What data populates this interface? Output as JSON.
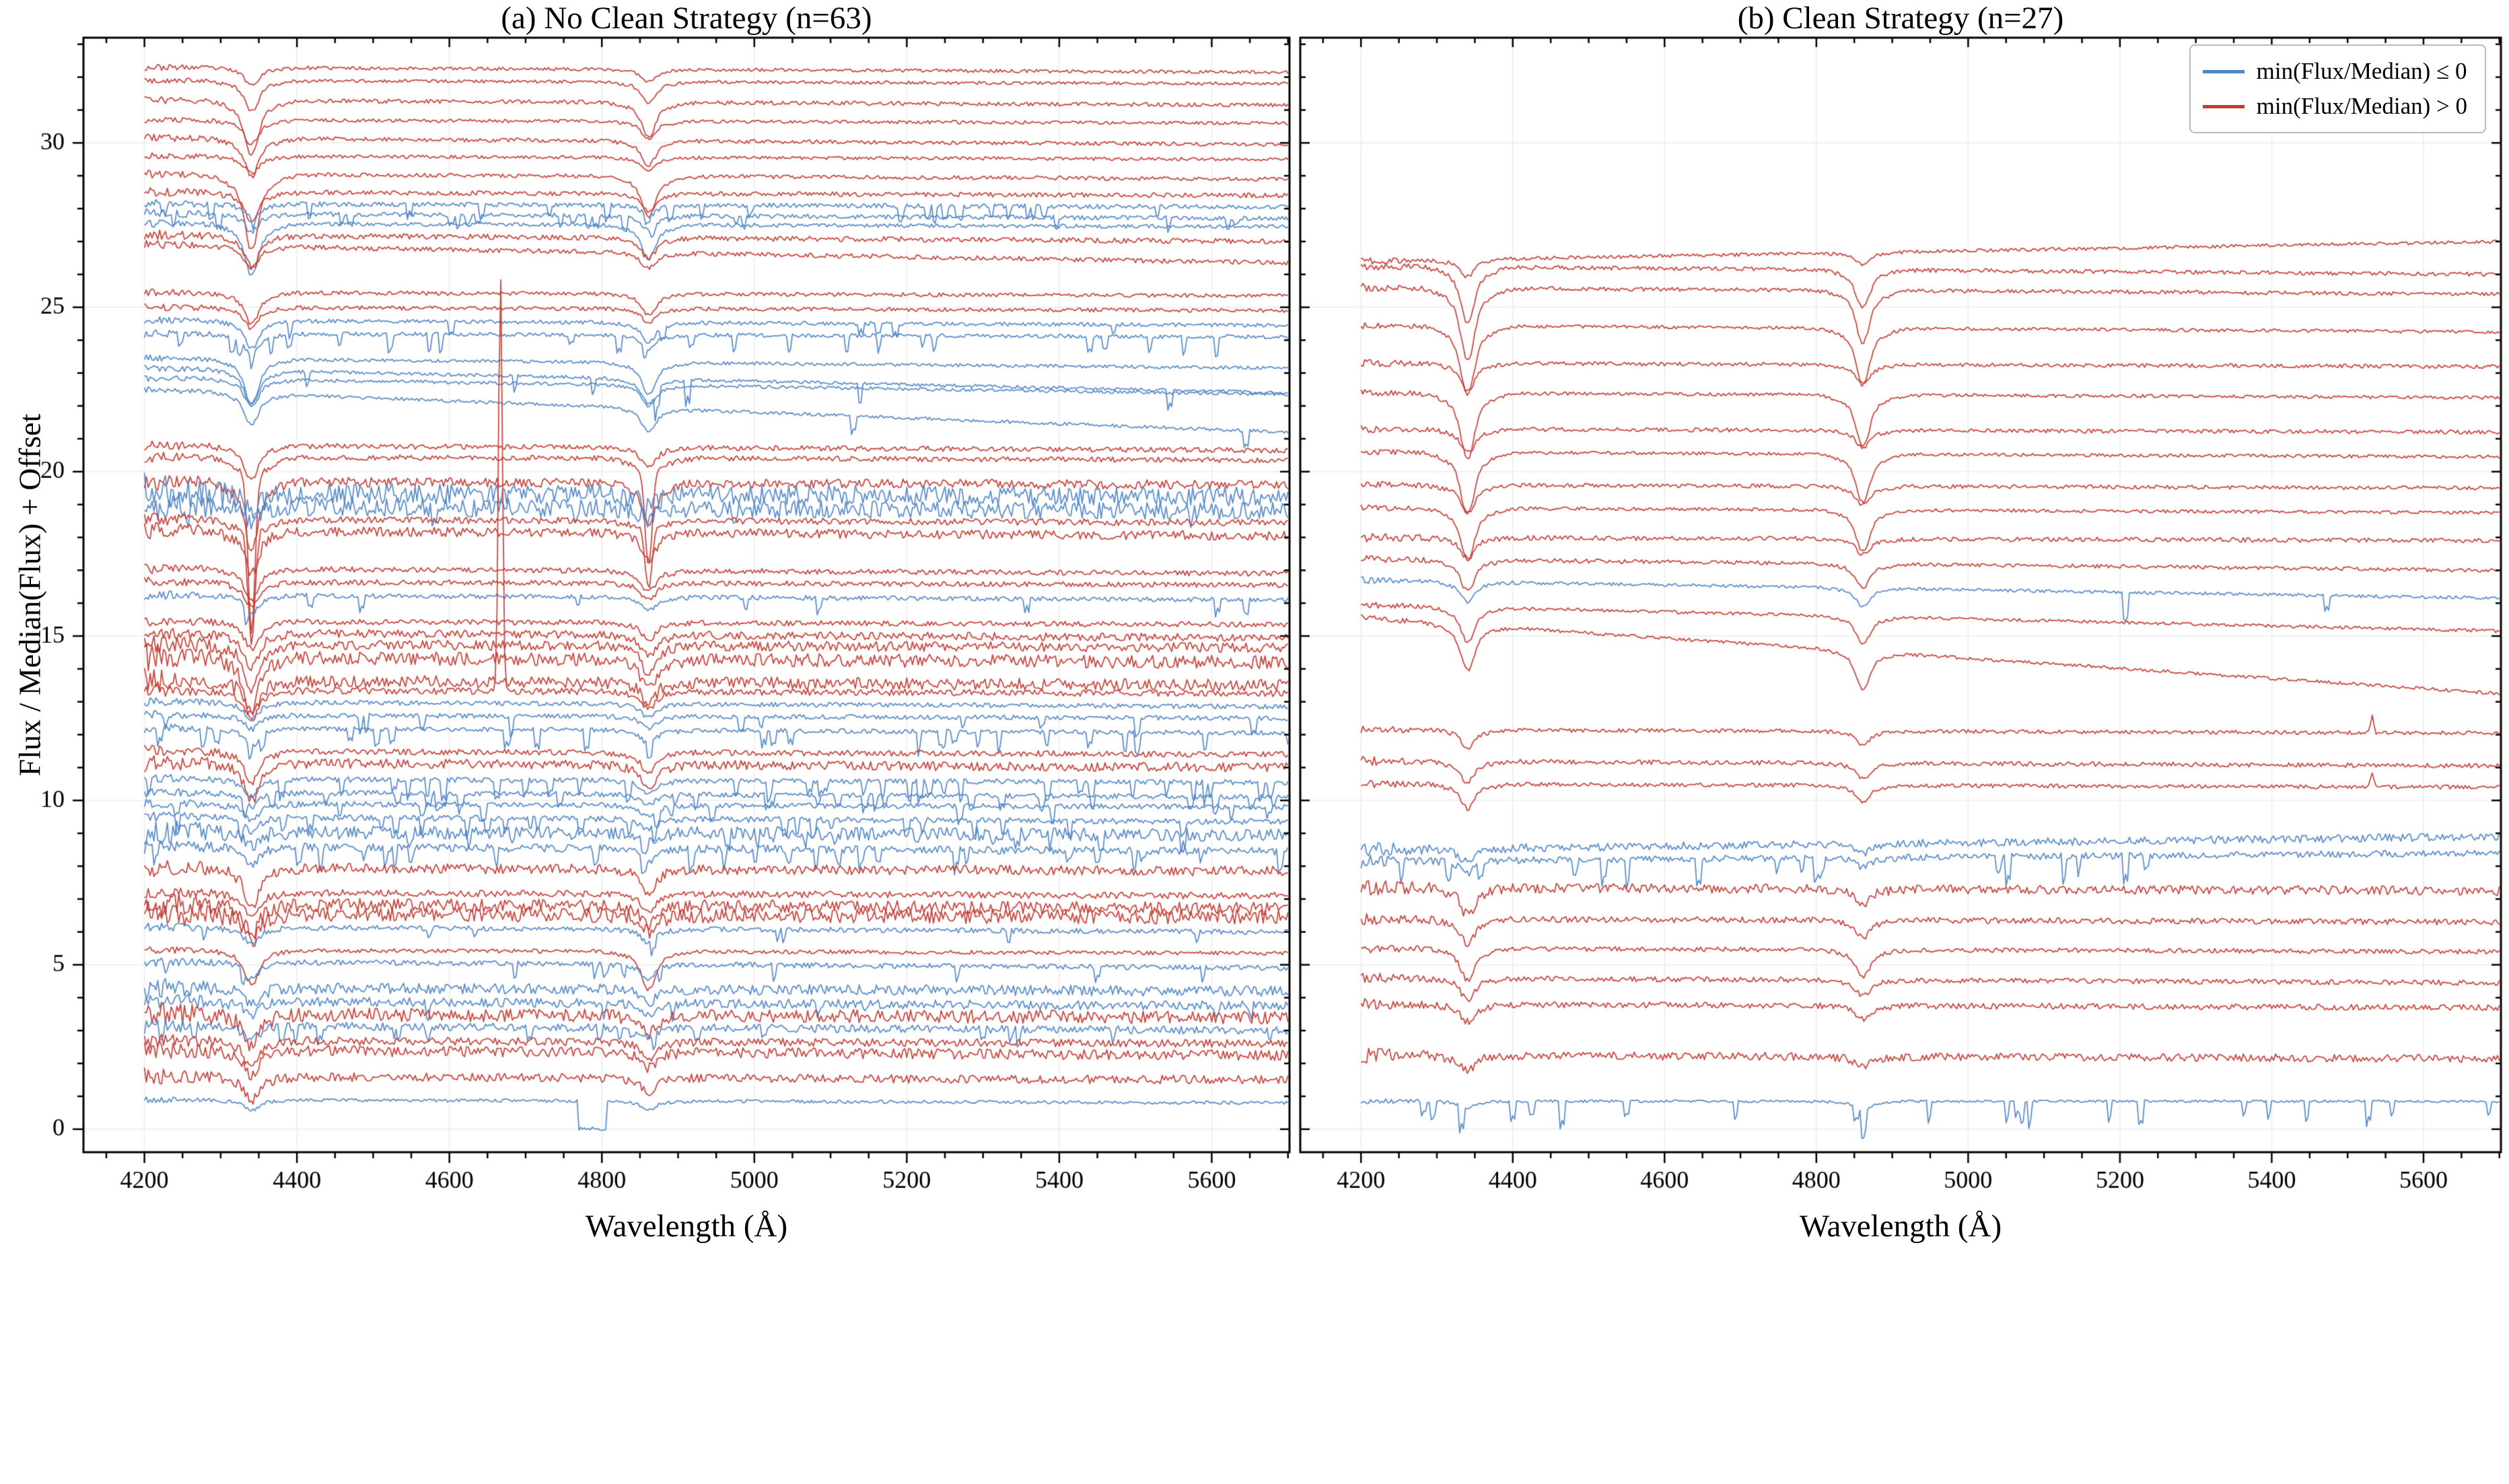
{
  "figure": {
    "panel_a_title": "(a) No Clean Strategy (n=63)",
    "panel_b_title": "(b) Clean Strategy (n=27)",
    "xlabel": "Wavelength (Å)",
    "ylabel": "Flux / Median(Flux) + Offset",
    "legend": [
      {
        "label": "min(Flux/Median) ≤ 0",
        "color_key": "blue"
      },
      {
        "label": "min(Flux/Median) > 0",
        "color_key": "red"
      }
    ]
  },
  "colors": {
    "blue": "#4f86c6",
    "red": "#c43a31",
    "grid": "#f0f0f0",
    "axis": "#000000"
  },
  "chart_data": [
    {
      "type": "line",
      "title": "(a) No Clean Strategy (n=63)",
      "xlabel": "Wavelength (Å)",
      "ylabel": "Flux / Median(Flux) + Offset",
      "xlim": [
        4120,
        5702
      ],
      "ylim": [
        -0.7,
        33.2
      ],
      "xticks": [
        4200,
        4400,
        4600,
        4800,
        5000,
        5200,
        5400,
        5600
      ],
      "yticks": [
        0,
        5,
        10,
        15,
        20,
        25,
        30
      ],
      "x_range_of_data": [
        4200,
        5700
      ],
      "series_note": "Each spectrum: o=offset at 4200 Å, c=color class (b: min<=0 blue, r: min>0 red), n=noise amplitude, s=total slope 4200-5700, g=Hgamma 4340 depth, b=Hbeta 4861 depth, d=dropout rate, dd=dropout depth, w=1 narrow deep lines, k=emission spikes [wavelength, amplitude, width], notch=[x1,x2,depth]",
      "series": [
        {
          "o": 32.3,
          "c": "r",
          "n": 0.05,
          "s": -0.15,
          "g": 0.5,
          "b": 0.35
        },
        {
          "o": 31.9,
          "c": "r",
          "n": 0.05,
          "s": -0.1,
          "g": 0.9,
          "b": 0.6
        },
        {
          "o": 31.3,
          "c": "r",
          "n": 0.06,
          "s": -0.15,
          "g": 1.6,
          "b": 1.0
        },
        {
          "o": 30.7,
          "c": "r",
          "n": 0.05,
          "s": -0.1,
          "g": 0.7,
          "b": 0.5
        },
        {
          "o": 30.15,
          "c": "r",
          "n": 0.06,
          "s": -0.2,
          "g": 1.1,
          "b": 0.7
        },
        {
          "o": 29.6,
          "c": "r",
          "n": 0.05,
          "s": -0.1,
          "g": 0.5,
          "b": 0.4
        },
        {
          "o": 29.05,
          "c": "r",
          "n": 0.06,
          "s": -0.15,
          "g": 2.2,
          "b": 1.2
        },
        {
          "o": 28.5,
          "c": "r",
          "n": 0.07,
          "s": -0.1,
          "g": 0.8,
          "b": 0.5
        },
        {
          "o": 28.15,
          "c": "b",
          "n": 0.07,
          "s": -0.1,
          "g": 0.4,
          "b": 0.3,
          "d": 0.5,
          "dd": 0.5
        },
        {
          "o": 27.85,
          "c": "b",
          "n": 0.07,
          "s": -0.15,
          "g": 0.5,
          "b": 0.4,
          "d": 0.3,
          "dd": 0.4
        },
        {
          "o": 27.55,
          "c": "b",
          "n": 0.06,
          "s": -0.1,
          "g": 1.5,
          "b": 1.0
        },
        {
          "o": 27.2,
          "c": "r",
          "n": 0.08,
          "s": -0.2,
          "g": 0.9,
          "b": 0.6
        },
        {
          "o": 26.9,
          "c": "r",
          "n": 0.07,
          "s": -0.55,
          "g": 0.6,
          "b": 0.45
        },
        {
          "o": 25.45,
          "c": "r",
          "n": 0.06,
          "s": -0.1,
          "g": 0.9,
          "b": 0.6
        },
        {
          "o": 25.0,
          "c": "r",
          "n": 0.06,
          "s": -0.1,
          "g": 0.6,
          "b": 0.4
        },
        {
          "o": 24.6,
          "c": "b",
          "n": 0.06,
          "s": -0.15,
          "g": 0.8,
          "b": 0.55,
          "d": 0.2,
          "dd": 0.5
        },
        {
          "o": 24.2,
          "c": "b",
          "n": 0.06,
          "s": -0.1,
          "g": 0.6,
          "b": 0.4,
          "d": 0.6,
          "dd": 0.6
        },
        {
          "o": 23.45,
          "c": "b",
          "n": 0.05,
          "s": -0.3,
          "g": 1.3,
          "b": 0.9
        },
        {
          "o": 23.15,
          "c": "b",
          "n": 0.05,
          "s": -0.75,
          "g": 1.0,
          "b": 0.7,
          "d": 0.15,
          "dd": 0.8
        },
        {
          "o": 22.85,
          "c": "b",
          "n": 0.05,
          "s": -0.5,
          "g": 0.8,
          "b": 0.6
        },
        {
          "o": 22.5,
          "c": "b",
          "n": 0.05,
          "s": -1.3,
          "g": 0.9,
          "b": 0.7,
          "d": 0.1,
          "dd": 0.7
        },
        {
          "o": 20.8,
          "c": "r",
          "n": 0.08,
          "s": -0.15,
          "g": 1.0,
          "b": 0.6
        },
        {
          "o": 20.45,
          "c": "r",
          "n": 0.08,
          "s": -0.1,
          "g": 6.5,
          "b": 4.0,
          "w": 1
        },
        {
          "o": 19.7,
          "c": "r",
          "n": 0.14,
          "s": -0.1,
          "g": 2.0,
          "b": 1.2
        },
        {
          "o": 19.35,
          "c": "b",
          "n": 0.3,
          "s": -0.1,
          "g": 0.5,
          "b": 0.4
        },
        {
          "o": 18.95,
          "c": "b",
          "n": 0.28,
          "s": -0.15,
          "g": 0.4,
          "b": 0.3,
          "d": 0.1,
          "dd": 0.6
        },
        {
          "o": 18.55,
          "c": "r",
          "n": 0.1,
          "s": -0.1,
          "g": 4.5,
          "b": 2.5,
          "w": 1
        },
        {
          "o": 18.2,
          "c": "r",
          "n": 0.14,
          "s": -0.15,
          "g": 1.2,
          "b": 0.8
        },
        {
          "o": 17.05,
          "c": "r",
          "n": 0.08,
          "s": -0.15,
          "g": 0.9,
          "b": 0.6
        },
        {
          "o": 16.65,
          "c": "r",
          "n": 0.08,
          "s": -0.1,
          "g": 0.7,
          "b": 0.5
        },
        {
          "o": 16.25,
          "c": "b",
          "n": 0.07,
          "s": -0.15,
          "g": 0.5,
          "b": 0.4,
          "d": 0.15,
          "dd": 0.5
        },
        {
          "o": 15.45,
          "c": "r",
          "n": 0.08,
          "s": -0.1,
          "g": 0.8,
          "b": 0.5
        },
        {
          "o": 15.1,
          "c": "r",
          "n": 0.12,
          "s": -0.15,
          "g": 1.0,
          "b": 0.6
        },
        {
          "o": 14.75,
          "c": "r",
          "n": 0.15,
          "s": -0.1,
          "g": 1.3,
          "b": 0.8
        },
        {
          "o": 14.35,
          "c": "r",
          "n": 0.2,
          "s": -0.15,
          "g": 1.5,
          "b": 0.9
        },
        {
          "o": 13.65,
          "c": "r",
          "n": 0.18,
          "s": -0.15,
          "g": 1.0,
          "b": 0.6
        },
        {
          "o": 13.35,
          "c": "r",
          "n": 0.1,
          "s": -0.1,
          "g": 0.8,
          "b": 0.5,
          "k": [
            [
              4667,
              12.8,
              2.5
            ]
          ]
        },
        {
          "o": 13.0,
          "c": "b",
          "n": 0.07,
          "s": -0.15,
          "g": 0.5,
          "b": 0.4
        },
        {
          "o": 12.6,
          "c": "b",
          "n": 0.07,
          "s": -0.1,
          "g": 0.4,
          "b": 0.35,
          "d": 0.5,
          "dd": 0.6
        },
        {
          "o": 12.2,
          "c": "b",
          "n": 0.07,
          "s": -0.15,
          "g": 0.5,
          "b": 0.4,
          "d": 0.7,
          "dd": 0.7
        },
        {
          "o": 11.5,
          "c": "r",
          "n": 0.09,
          "s": -0.1,
          "g": 0.9,
          "b": 0.6
        },
        {
          "o": 11.15,
          "c": "r",
          "n": 0.14,
          "s": -0.15,
          "g": 1.1,
          "b": 0.7
        },
        {
          "o": 10.65,
          "c": "b",
          "n": 0.08,
          "s": -0.1,
          "g": 0.5,
          "b": 0.4,
          "d": 0.8,
          "dd": 0.7
        },
        {
          "o": 10.25,
          "c": "b",
          "n": 0.08,
          "s": -0.15,
          "g": 0.4,
          "b": 0.3,
          "d": 0.6,
          "dd": 0.6
        },
        {
          "o": 9.9,
          "c": "b",
          "n": 0.08,
          "s": -0.1,
          "g": 0.5,
          "b": 0.35,
          "d": 0.3,
          "dd": 0.5
        },
        {
          "o": 9.5,
          "c": "b",
          "n": 0.09,
          "s": -0.15,
          "g": 0.4,
          "b": 0.3,
          "d": 0.5,
          "dd": 0.6
        },
        {
          "o": 9.05,
          "c": "b",
          "n": 0.2,
          "s": -0.1,
          "g": 0.4,
          "b": 0.3,
          "d": 0.2,
          "dd": 0.5
        },
        {
          "o": 8.6,
          "c": "b",
          "n": 0.12,
          "s": -0.15,
          "g": 0.5,
          "b": 0.35,
          "d": 0.7,
          "dd": 0.7
        },
        {
          "o": 7.95,
          "c": "r",
          "n": 0.15,
          "s": -0.1,
          "g": 1.1,
          "b": 0.7
        },
        {
          "o": 7.2,
          "c": "r",
          "n": 0.1,
          "s": -0.1,
          "g": 0.7,
          "b": 0.5
        },
        {
          "o": 6.85,
          "c": "r",
          "n": 0.2,
          "s": -0.15,
          "g": 0.9,
          "b": 0.6
        },
        {
          "o": 6.55,
          "c": "r",
          "n": 0.22,
          "s": -0.1,
          "g": 0.8,
          "b": 0.5
        },
        {
          "o": 6.15,
          "c": "b",
          "n": 0.08,
          "s": -0.15,
          "g": 0.5,
          "b": 0.4,
          "d": 0.2,
          "dd": 0.5
        },
        {
          "o": 5.45,
          "c": "r",
          "n": 0.06,
          "s": -0.1,
          "g": 1.0,
          "b": 1.1
        },
        {
          "o": 5.1,
          "c": "b",
          "n": 0.08,
          "s": -0.2,
          "g": 0.5,
          "b": 0.4,
          "d": 0.2,
          "dd": 0.5
        },
        {
          "o": 4.3,
          "c": "b",
          "n": 0.16,
          "s": -0.1,
          "g": 0.5,
          "b": 0.4
        },
        {
          "o": 3.9,
          "c": "b",
          "n": 0.14,
          "s": -0.15,
          "g": 0.4,
          "b": 0.3,
          "d": 0.2,
          "dd": 0.5
        },
        {
          "o": 3.5,
          "c": "r",
          "n": 0.2,
          "s": -0.1,
          "g": 0.9,
          "b": 0.55
        },
        {
          "o": 3.15,
          "c": "b",
          "n": 0.12,
          "s": -0.15,
          "g": 0.4,
          "b": 0.3,
          "d": 0.4,
          "dd": 0.5
        },
        {
          "o": 2.7,
          "c": "r",
          "n": 0.12,
          "s": -0.1,
          "g": 0.8,
          "b": 0.5
        },
        {
          "o": 2.4,
          "c": "r",
          "n": 0.16,
          "s": -0.15,
          "g": 0.7,
          "b": 0.45
        },
        {
          "o": 1.6,
          "c": "r",
          "n": 0.13,
          "s": -0.1,
          "g": 0.7,
          "b": 0.45
        },
        {
          "o": 0.9,
          "c": "b",
          "n": 0.05,
          "s": -0.1,
          "g": 0.3,
          "b": 0.25,
          "notch": [
            4768,
            4806,
            0.85
          ]
        }
      ]
    },
    {
      "type": "line",
      "title": "(b) Clean Strategy (n=27)",
      "xlabel": "Wavelength (Å)",
      "ylabel": "Flux / Median(Flux) + Offset",
      "xlim": [
        4120,
        5702
      ],
      "ylim": [
        -0.7,
        33.2
      ],
      "xticks": [
        4200,
        4400,
        4600,
        4800,
        5000,
        5200,
        5400,
        5600
      ],
      "yticks": [
        0,
        5,
        10,
        15,
        20,
        25,
        30
      ],
      "x_range_of_data": [
        4200,
        5700
      ],
      "series": [
        {
          "o": 26.4,
          "c": "r",
          "n": 0.05,
          "s": 0.6,
          "g": 0.5,
          "b": 0.35
        },
        {
          "o": 26.25,
          "c": "r",
          "n": 0.06,
          "s": -0.25,
          "g": 1.6,
          "b": 1.1
        },
        {
          "o": 25.6,
          "c": "r",
          "n": 0.06,
          "s": -0.2,
          "g": 2.1,
          "b": 1.5
        },
        {
          "o": 24.45,
          "c": "r",
          "n": 0.05,
          "s": -0.2,
          "g": 2.0,
          "b": 1.6
        },
        {
          "o": 23.3,
          "c": "r",
          "n": 0.06,
          "s": -0.1,
          "g": 0.8,
          "b": 0.6
        },
        {
          "o": 22.4,
          "c": "r",
          "n": 0.05,
          "s": -0.15,
          "g": 1.9,
          "b": 1.5
        },
        {
          "o": 21.3,
          "c": "r",
          "n": 0.06,
          "s": -0.1,
          "g": 0.7,
          "b": 0.5
        },
        {
          "o": 20.6,
          "c": "r",
          "n": 0.05,
          "s": -0.15,
          "g": 1.8,
          "b": 1.4
        },
        {
          "o": 19.6,
          "c": "r",
          "n": 0.06,
          "s": -0.1,
          "g": 0.8,
          "b": 0.55
        },
        {
          "o": 18.9,
          "c": "r",
          "n": 0.05,
          "s": -0.15,
          "g": 1.5,
          "b": 1.2
        },
        {
          "o": 18.0,
          "c": "r",
          "n": 0.07,
          "s": -0.1,
          "g": 0.6,
          "b": 0.45
        },
        {
          "o": 17.35,
          "c": "r",
          "n": 0.06,
          "s": -0.35,
          "g": 0.9,
          "b": 0.7
        },
        {
          "o": 16.7,
          "c": "b",
          "n": 0.05,
          "s": -0.55,
          "g": 0.6,
          "b": 0.55,
          "d": 0.03,
          "dd": 0.9
        },
        {
          "o": 15.95,
          "c": "r",
          "n": 0.05,
          "s": -0.8,
          "g": 1.0,
          "b": 0.8
        },
        {
          "o": 15.55,
          "c": "r",
          "n": 0.05,
          "s": -2.3,
          "g": 1.3,
          "b": 1.1
        },
        {
          "o": 12.15,
          "c": "r",
          "n": 0.06,
          "s": -0.1,
          "g": 0.5,
          "b": 0.4,
          "k": [
            [
              5532,
              0.5,
              2
            ]
          ]
        },
        {
          "o": 11.2,
          "c": "r",
          "n": 0.07,
          "s": -0.15,
          "g": 0.6,
          "b": 0.45
        },
        {
          "o": 10.5,
          "c": "r",
          "n": 0.06,
          "s": -0.1,
          "g": 0.7,
          "b": 0.5,
          "k": [
            [
              5532,
              0.45,
              2
            ]
          ]
        },
        {
          "o": 8.5,
          "c": "b",
          "n": 0.12,
          "s": 0.4,
          "g": 0.4,
          "b": 0.3
        },
        {
          "o": 8.15,
          "c": "b",
          "n": 0.1,
          "s": 0.25,
          "g": 0.35,
          "b": 0.3,
          "d": 0.55,
          "dd": 0.9,
          "dx": 5250
        },
        {
          "o": 7.35,
          "c": "r",
          "n": 0.14,
          "s": -0.1,
          "g": 0.8,
          "b": 0.5
        },
        {
          "o": 6.4,
          "c": "r",
          "n": 0.09,
          "s": -0.1,
          "g": 0.7,
          "b": 0.5
        },
        {
          "o": 5.5,
          "c": "r",
          "n": 0.07,
          "s": -0.1,
          "g": 0.9,
          "b": 0.8
        },
        {
          "o": 4.6,
          "c": "r",
          "n": 0.08,
          "s": -0.15,
          "g": 0.6,
          "b": 0.45
        },
        {
          "o": 3.8,
          "c": "r",
          "n": 0.09,
          "s": -0.1,
          "g": 0.5,
          "b": 0.4
        },
        {
          "o": 2.25,
          "c": "r",
          "n": 0.12,
          "s": -0.1,
          "g": 0.45,
          "b": 0.3
        },
        {
          "o": 0.85,
          "c": "b",
          "n": 0.04,
          "s": 0,
          "g": 0.2,
          "b": 0.3,
          "d": 0.6,
          "dd": 0.85
        }
      ]
    }
  ]
}
